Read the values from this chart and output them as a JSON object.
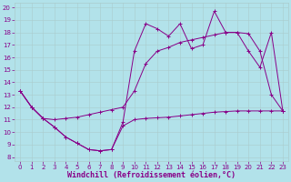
{
  "bg_color": "#b2e2ea",
  "line_color": "#880088",
  "grid_color": "#aacccc",
  "xlabel": "Windchill (Refroidissement éolien,°C)",
  "xlim_min": -0.5,
  "xlim_max": 23.5,
  "ylim_min": 7.7,
  "ylim_max": 20.4,
  "xticks": [
    0,
    1,
    2,
    3,
    4,
    5,
    6,
    7,
    8,
    9,
    10,
    11,
    12,
    13,
    14,
    15,
    16,
    17,
    18,
    19,
    20,
    21,
    22,
    23
  ],
  "yticks": [
    8,
    9,
    10,
    11,
    12,
    13,
    14,
    15,
    16,
    17,
    18,
    19,
    20
  ],
  "tick_fontsize": 5.0,
  "label_fontsize": 6.0,
  "line1_x": [
    0,
    1,
    2,
    3,
    4,
    5,
    6,
    7,
    8,
    9,
    10,
    11,
    12,
    13,
    14,
    15,
    16,
    17,
    18,
    19,
    20,
    21,
    22,
    23
  ],
  "line1_y": [
    13.3,
    12.0,
    11.1,
    10.4,
    9.6,
    9.1,
    8.6,
    8.5,
    8.6,
    10.5,
    11.0,
    11.1,
    11.15,
    11.2,
    11.3,
    11.4,
    11.5,
    11.6,
    11.65,
    11.7,
    11.7,
    11.7,
    11.7,
    11.7
  ],
  "line2_x": [
    0,
    1,
    2,
    3,
    4,
    5,
    6,
    7,
    8,
    9,
    10,
    11,
    12,
    13,
    14,
    15,
    16,
    17,
    18,
    19,
    20,
    21,
    22,
    23
  ],
  "line2_y": [
    13.3,
    12.0,
    11.1,
    11.0,
    11.1,
    11.2,
    11.4,
    11.6,
    11.8,
    12.0,
    13.3,
    15.5,
    16.5,
    16.8,
    17.2,
    17.4,
    17.6,
    17.8,
    18.0,
    18.0,
    17.9,
    16.5,
    13.0,
    11.7
  ],
  "line3_x": [
    0,
    1,
    2,
    3,
    4,
    5,
    6,
    7,
    8,
    9,
    10,
    11,
    12,
    13,
    14,
    15,
    16,
    17,
    18,
    19,
    20,
    21,
    22,
    23
  ],
  "line3_y": [
    13.3,
    12.0,
    11.1,
    10.4,
    9.6,
    9.1,
    8.6,
    8.5,
    8.6,
    10.8,
    16.5,
    18.7,
    18.3,
    17.7,
    18.7,
    16.7,
    17.0,
    19.7,
    18.0,
    18.0,
    16.5,
    15.2,
    18.0,
    11.7
  ]
}
